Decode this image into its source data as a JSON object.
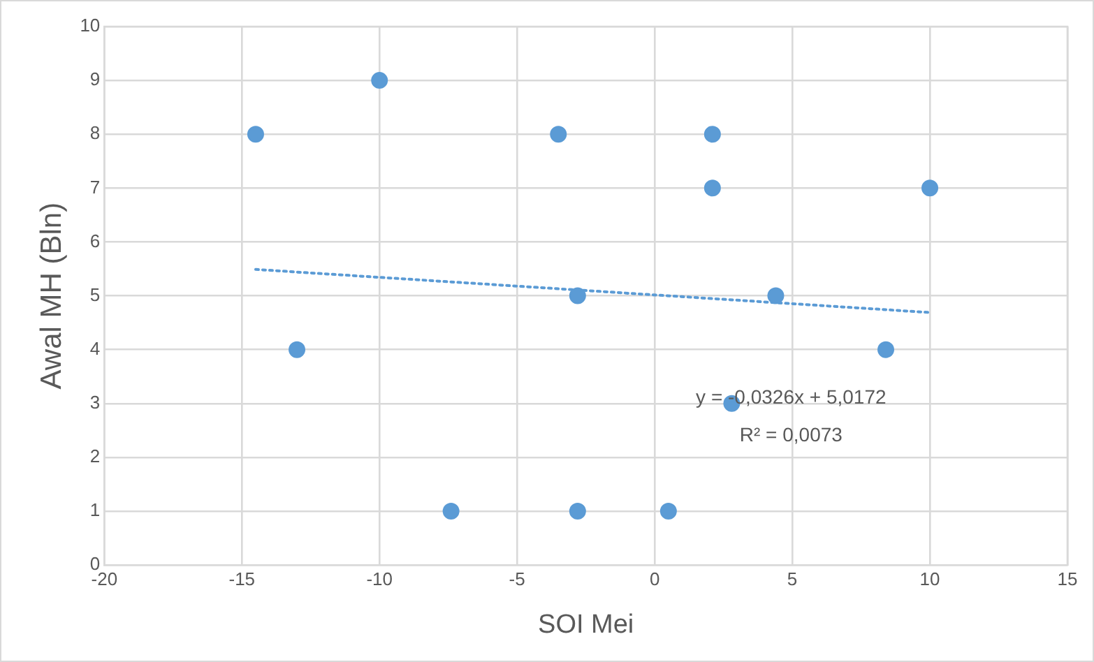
{
  "chart_data": {
    "type": "scatter",
    "xlabel": "SOI Mei",
    "ylabel": "Awal MH (Bln)",
    "xlim": [
      -20,
      15
    ],
    "xticks": [
      -20,
      -15,
      -10,
      -5,
      0,
      5,
      10,
      15
    ],
    "ylim": [
      0,
      10
    ],
    "yticks": [
      0,
      1,
      2,
      3,
      4,
      5,
      6,
      7,
      8,
      9,
      10
    ],
    "grid": true,
    "marker": "circle",
    "series": [
      {
        "type": "scatter",
        "color": "#5b9bd5",
        "x": [
          -14.5,
          -10,
          -13,
          -7.4,
          -3.5,
          -2.8,
          -2.8,
          0.5,
          2.1,
          2.1,
          2.8,
          4.4,
          8.4,
          10
        ],
        "values": [
          8,
          9,
          4,
          1,
          8,
          5,
          1,
          1,
          8,
          7,
          3,
          5,
          4,
          7
        ]
      },
      {
        "type": "line",
        "color": "#5b9bd5",
        "line_style": "dotted",
        "marker": "none",
        "x": [
          -14.5,
          10
        ],
        "values": [
          5.49,
          4.69
        ]
      }
    ],
    "annotations": [
      "y = -0,0326x + 5,0172",
      "R² = 0,0073"
    ]
  }
}
